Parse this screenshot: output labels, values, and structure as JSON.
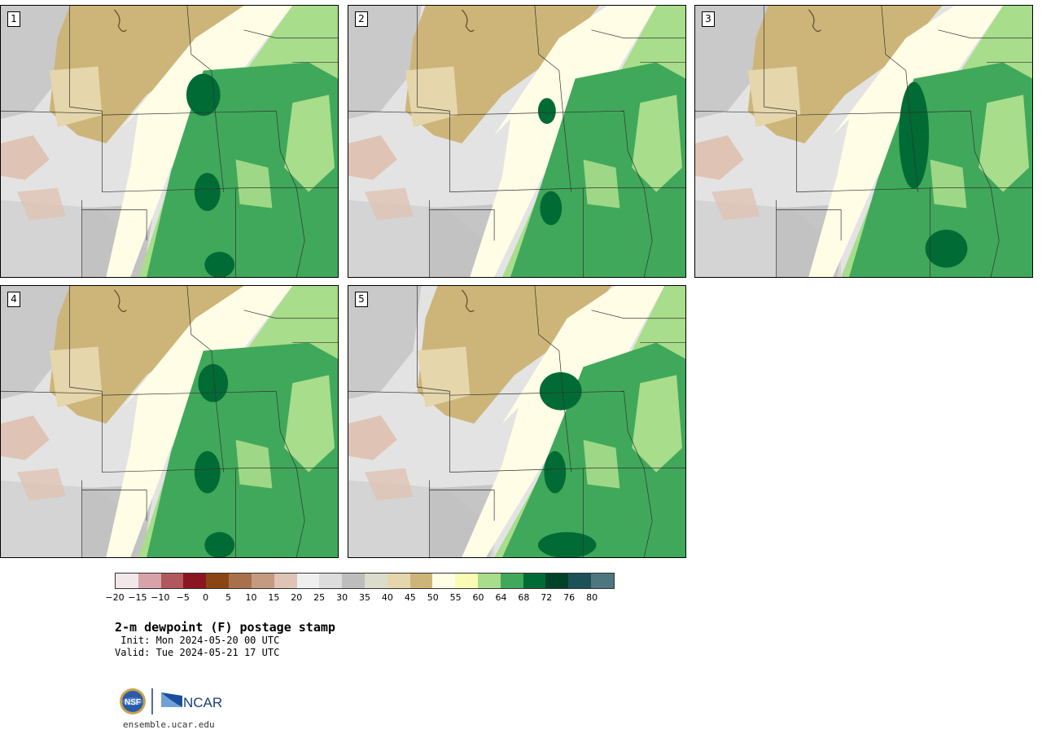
{
  "panels": [
    {
      "label": "1"
    },
    {
      "label": "2"
    },
    {
      "label": "3"
    },
    {
      "label": "4"
    },
    {
      "label": "5"
    }
  ],
  "colorbar": {
    "colors": [
      "#f2e8ea",
      "#d7a3a9",
      "#b0585e",
      "#8a1622",
      "#8b4513",
      "#a9714b",
      "#c49a80",
      "#dfc3b4",
      "#efefef",
      "#dcdcdc",
      "#bdbdbd",
      "#dcdccc",
      "#e5d6ac",
      "#cdb579",
      "#fffde6",
      "#fafcb6",
      "#a8dd8b",
      "#40a85a",
      "#006b35",
      "#00422a",
      "#1d5158",
      "#4d777e"
    ],
    "tick_labels": [
      "−20",
      "−15",
      "−10",
      "−5",
      "0",
      "5",
      "10",
      "15",
      "20",
      "25",
      "30",
      "35",
      "40",
      "45",
      "50",
      "55",
      "60",
      "64",
      "68",
      "72",
      "76",
      "80"
    ]
  },
  "title": "2-m dewpoint (F) postage stamp",
  "init": " Init: Mon 2024-05-20 00 UTC",
  "valid": "Valid: Tue 2024-05-21 17 UTC",
  "logos": {
    "nsf": "NSF",
    "ncar": "NCAR"
  },
  "website": "ensemble.ucar.edu",
  "legend_colors": {
    "very_dry": "#bdbdbd",
    "dry_brown": "#cdb579",
    "light_yellow": "#fffde6",
    "moist_green": "#40a85a",
    "very_moist_green": "#006b35"
  }
}
